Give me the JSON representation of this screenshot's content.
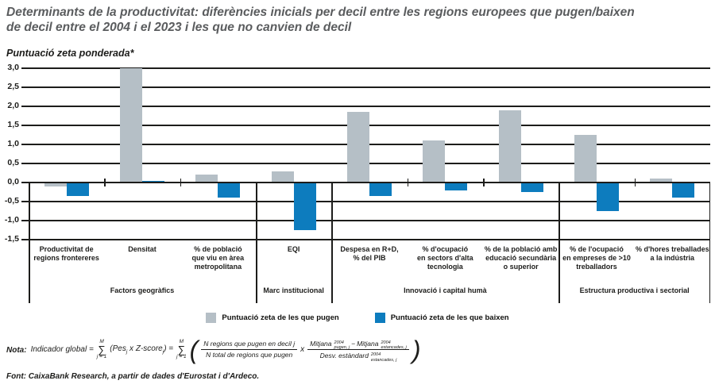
{
  "header": {
    "title_line1": "Determinants de la productivitat: diferències inicials per decil entre les regions europees que pugen/baixen",
    "title_line2": "de decil entre el 2004 i el 2023 i les que no canvien de decil",
    "subtitle": "Puntuació zeta ponderada*"
  },
  "chart_data": {
    "type": "bar",
    "title": "Determinants de la productivitat: diferències inicials per decil entre les regions europees que pugen/baixen de decil entre el 2004 i el 2023 i les que no canvien de decil",
    "ylabel": "Puntuació zeta ponderada*",
    "ylim": [
      -1.5,
      3.0
    ],
    "grid": true,
    "legend_position": "bottom",
    "yticks": [
      3.0,
      2.5,
      2.0,
      1.5,
      1.0,
      0.5,
      0.0,
      -0.5,
      -1.0,
      -1.5
    ],
    "ytick_labels": [
      "3,0",
      "2,5",
      "2,0",
      "1,5",
      "1,0",
      "0,5",
      "0,0",
      "-0,5",
      "-1,0",
      "-1,5"
    ],
    "groups": [
      {
        "label": "Factors geogràfics",
        "count": 3
      },
      {
        "label": "Marc institucional",
        "count": 1
      },
      {
        "label": "Innovació i capital humà",
        "count": 3
      },
      {
        "label": "Estructura productiva i sectorial",
        "count": 2
      }
    ],
    "categories": [
      "Productivitat de\nregions frontereres",
      "Densitat",
      "% de població\nque viu en àrea\nmetropolitana",
      "EQI",
      "Despesa en R+D,\n% del PIB",
      "% d'ocupació\nen sectors d'alta\ntecnologia",
      "% de la població amb\neducació secundària\no superior",
      "% de l'ocupació\nen empreses de >10\ntreballadors",
      "% d'hores treballades\na la indústria"
    ],
    "series": [
      {
        "name": "Puntuació zeta de les que pugen",
        "color": "#b5bfc6",
        "values": [
          -0.1,
          3.0,
          0.2,
          0.3,
          1.85,
          1.1,
          1.9,
          1.25,
          0.1
        ]
      },
      {
        "name": "Puntuació zeta de les que baixen",
        "color": "#0d7cbe",
        "values": [
          -0.35,
          0.05,
          -0.4,
          -1.25,
          -0.35,
          -0.2,
          -0.25,
          -0.75,
          -0.4
        ]
      }
    ]
  },
  "note": {
    "label": "Nota:",
    "lhs": "Indicador global =",
    "sum_sup": "M",
    "sum_sub": "j = 1",
    "term1": "(Pes",
    "term1_sub": "j",
    "term1_mid": " x Z-score",
    "term1_sub2": "j",
    "term1_close": ") =",
    "paren_open": "(",
    "paren_close": ")",
    "frac1_num": "N regions que pugen en decil j",
    "frac1_den": "N total de regions que pugen",
    "times": "x",
    "m1": "Mitjana",
    "m1_sup": "2004",
    "m1_sub": "pugen, j",
    "minus": "−",
    "m2": "Mitjana",
    "m2_sup": "2004",
    "m2_sub": "estancades, j",
    "den": "Desv. estàndard",
    "den_sup": "2004",
    "den_sub": "estancades, j"
  },
  "source": "Font: CaixaBank Research, a partir de dades d'Eurostat i d'Ardeco."
}
